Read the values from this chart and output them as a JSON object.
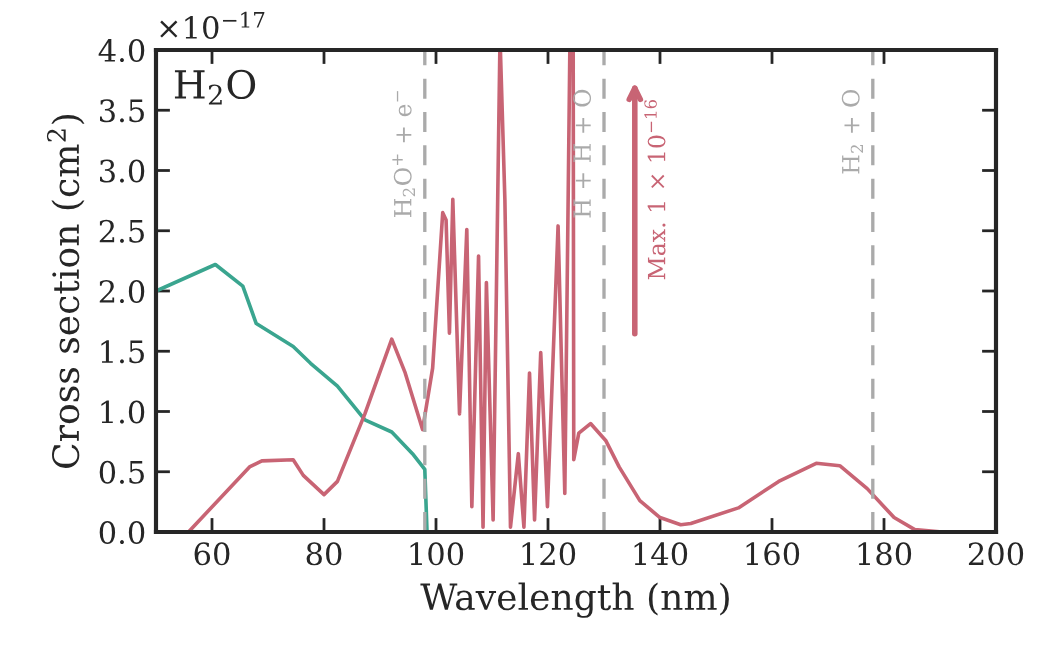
{
  "chart_data": {
    "type": "line",
    "title": "H$_{2}$O",
    "xlabel": "Wavelength (nm)",
    "ylabel": "Cross section (cm$^{2}$)",
    "xlim": [
      50,
      200
    ],
    "xticks": [
      60,
      80,
      100,
      120,
      140,
      160,
      180,
      200
    ],
    "ylim": [
      0,
      4
    ],
    "yticks": [
      {
        "value": 0,
        "label": "0.0"
      },
      {
        "value": 0.5,
        "label": "0.5"
      },
      {
        "value": 1,
        "label": "1.0"
      },
      {
        "value": 1.5,
        "label": "1.5"
      },
      {
        "value": 2,
        "label": "2.0"
      },
      {
        "value": 2.5,
        "label": "2.5"
      },
      {
        "value": 3,
        "label": "3.0"
      },
      {
        "value": 3.5,
        "label": "3.5"
      },
      {
        "value": 4,
        "label": "4.0"
      }
    ],
    "grid": false,
    "series": [
      {
        "color": "#3aa58f",
        "x": [
          50,
          60.6,
          65.5,
          67.9,
          74.5,
          77.6,
          82.4,
          87.3,
          92.1,
          95.8,
          98.0,
          98.4
        ],
        "values": [
          2.0,
          2.22,
          2.04,
          1.73,
          1.54,
          1.4,
          1.21,
          0.93,
          0.83,
          0.65,
          0.52,
          0
        ]
      },
      {
        "color": "#c86474",
        "x": [
          50,
          55.8,
          66.7,
          68.9,
          74.5,
          76.3,
          80.0,
          82.4,
          87.3,
          92.1,
          94.5,
          97.6,
          99.4,
          101.2,
          101.8,
          102.4,
          103.0,
          104.2,
          105.5,
          106.4,
          107.6,
          108.4,
          109.0,
          110.2,
          111.4,
          111.5,
          112.3,
          113.3,
          114.7,
          115.7,
          116.7,
          117.6,
          118.7,
          119.9,
          121.8,
          123.0,
          123.9,
          124.5,
          124.6,
          125.5,
          127.6,
          130.3,
          132.7,
          136.4,
          140.0,
          143.7,
          145.5,
          154.0,
          161.2,
          167.9,
          172.1,
          177.0,
          181.8,
          185.5,
          190.4,
          200
        ],
        "values": [
          0,
          0,
          0.54,
          0.59,
          0.6,
          0.47,
          0.31,
          0.42,
          0.98,
          1.6,
          1.32,
          0.85,
          1.36,
          2.65,
          2.59,
          1.65,
          2.76,
          0.98,
          2.51,
          0.21,
          2.29,
          0.04,
          2.07,
          0.1,
          4.0,
          4.0,
          2.76,
          0.04,
          0.65,
          0.04,
          1.32,
          0.1,
          1.49,
          0.21,
          2.54,
          0.32,
          4.0,
          4.0,
          0.6,
          0.82,
          0.9,
          0.76,
          0.54,
          0.26,
          0.12,
          0.06,
          0.07,
          0.2,
          0.42,
          0.57,
          0.55,
          0.36,
          0.12,
          0.02,
          0,
          0
        ]
      }
    ],
    "ref_lines": [
      {
        "axis": "x",
        "value": 98,
        "label": "H$_{2}$O$^{+}$ + e$^{−}$",
        "color": "#aaaaaa",
        "line_style": "dashed"
      },
      {
        "axis": "x",
        "value": 130,
        "label": "H + H + O",
        "color": "#aaaaaa",
        "line_style": "dashed"
      },
      {
        "axis": "x",
        "value": 178,
        "label": "H$_{2}$ + O",
        "color": "#aaaaaa",
        "line_style": "dashed"
      }
    ],
    "annotations": [
      "×10$^{−17}$",
      "Max. 1 × 10$^{−16}$"
    ]
  }
}
